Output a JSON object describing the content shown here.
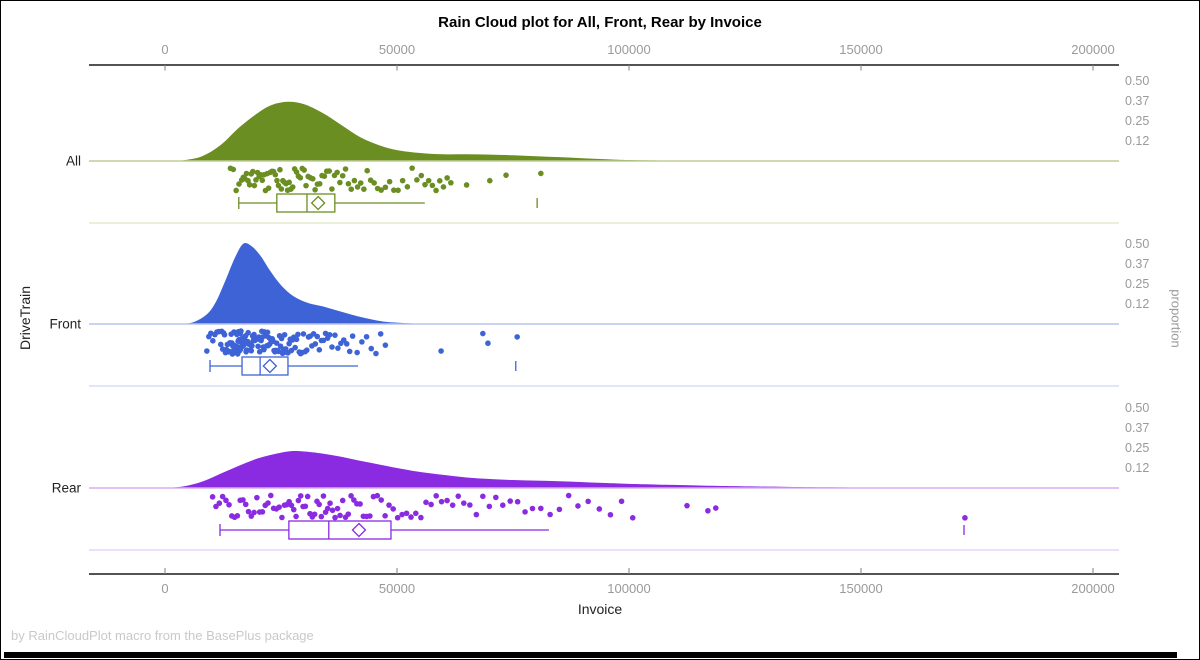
{
  "title": "Rain Cloud plot for All, Front, Rear by Invoice",
  "footer": "by RainCloudPlot macro from the BasePlus package",
  "x_axis": {
    "label": "Invoice",
    "tick_values": [
      0,
      50000,
      100000,
      150000,
      200000
    ],
    "tick_labels": [
      "0",
      "50000",
      "100000",
      "150000",
      "200000"
    ]
  },
  "y_axis": {
    "label": "DriveTrain",
    "categories": [
      "All",
      "Front",
      "Rear"
    ]
  },
  "right_axis": {
    "label": "proportion",
    "tick_labels": [
      "0.50",
      "0.37",
      "0.25",
      "0.12"
    ],
    "tick_values": [
      0.5,
      0.375,
      0.25,
      0.125
    ]
  },
  "chart_data": {
    "type": "raincloud",
    "xlabel": "Invoice",
    "ylabel": "DriveTrain",
    "x_range": [
      0,
      200000
    ],
    "proportion_ticks": [
      0.5,
      0.375,
      0.25,
      0.125
    ],
    "groups": [
      {
        "name": "All",
        "color": "#6B8E23",
        "baseline_color": "#BFCE96",
        "separator_color": "#DDE5C4",
        "density": [
          [
            1000,
            0
          ],
          [
            4000,
            0.005
          ],
          [
            8000,
            0.03
          ],
          [
            12000,
            0.1
          ],
          [
            16000,
            0.21
          ],
          [
            20000,
            0.3
          ],
          [
            23000,
            0.35
          ],
          [
            26500,
            0.37
          ],
          [
            30000,
            0.355
          ],
          [
            34000,
            0.3
          ],
          [
            38000,
            0.225
          ],
          [
            42000,
            0.15
          ],
          [
            46000,
            0.1
          ],
          [
            50000,
            0.068
          ],
          [
            55000,
            0.05
          ],
          [
            60000,
            0.042
          ],
          [
            65000,
            0.042
          ],
          [
            70000,
            0.04
          ],
          [
            75000,
            0.036
          ],
          [
            80000,
            0.03
          ],
          [
            85000,
            0.024
          ],
          [
            90000,
            0.017
          ],
          [
            95000,
            0.011
          ],
          [
            100000,
            0.006
          ],
          [
            110000,
            0.002
          ],
          [
            120000,
            0
          ]
        ],
        "box": {
          "whisker_low": 15900,
          "q1": 24100,
          "median": 30600,
          "mean": 33000,
          "q3": 36600,
          "whisker_high": 56000,
          "far_outlier": 80200
        },
        "rain": {
          "count": 88,
          "quantiles": [
            13800,
            16500,
            18000,
            19500,
            21000,
            22500,
            24100,
            25500,
            27000,
            28800,
            30600,
            32800,
            35000,
            37500,
            40200,
            43200,
            46500,
            50500,
            55000,
            58500,
            62000
          ],
          "extras": [
            65000,
            70000,
            73500,
            81000
          ]
        }
      },
      {
        "name": "Front",
        "color": "#3E63D6",
        "baseline_color": "#B7C4EC",
        "separator_color": "#CCD7F1",
        "density": [
          [
            3000,
            0
          ],
          [
            6000,
            0.01
          ],
          [
            9000,
            0.06
          ],
          [
            11000,
            0.14
          ],
          [
            13000,
            0.27
          ],
          [
            15000,
            0.41
          ],
          [
            16800,
            0.5
          ],
          [
            18500,
            0.49
          ],
          [
            20500,
            0.43
          ],
          [
            22500,
            0.34
          ],
          [
            24500,
            0.26
          ],
          [
            26500,
            0.2
          ],
          [
            28500,
            0.16
          ],
          [
            31000,
            0.13
          ],
          [
            34000,
            0.11
          ],
          [
            37000,
            0.085
          ],
          [
            40000,
            0.06
          ],
          [
            43000,
            0.038
          ],
          [
            46000,
            0.02
          ],
          [
            49000,
            0.01
          ],
          [
            53000,
            0.004
          ],
          [
            58000,
            0.001
          ],
          [
            65000,
            0
          ]
        ],
        "box": {
          "whisker_low": 9700,
          "q1": 16600,
          "median": 20500,
          "mean": 22600,
          "q3": 26500,
          "whisker_high": 41600,
          "far_outlier": 75600
        },
        "rain": {
          "count": 148,
          "quantiles": [
            8800,
            12000,
            13500,
            14500,
            15300,
            16000,
            16600,
            17300,
            18100,
            19200,
            20500,
            21600,
            22800,
            24200,
            25800,
            27600,
            29800,
            32500,
            35800,
            40500,
            48000
          ],
          "extras": [
            59500,
            68500,
            69600,
            75900
          ]
        }
      },
      {
        "name": "Rear",
        "color": "#8A2BE2",
        "baseline_color": "#D6AEF0",
        "separator_color": "#E4C9F5",
        "density": [
          [
            0,
            0
          ],
          [
            4000,
            0.01
          ],
          [
            8000,
            0.04
          ],
          [
            12000,
            0.09
          ],
          [
            16000,
            0.14
          ],
          [
            20000,
            0.185
          ],
          [
            24000,
            0.215
          ],
          [
            27000,
            0.23
          ],
          [
            30000,
            0.228
          ],
          [
            34000,
            0.215
          ],
          [
            38000,
            0.195
          ],
          [
            42000,
            0.17
          ],
          [
            46000,
            0.148
          ],
          [
            50000,
            0.125
          ],
          [
            55000,
            0.1
          ],
          [
            60000,
            0.082
          ],
          [
            65000,
            0.066
          ],
          [
            70000,
            0.056
          ],
          [
            75000,
            0.05
          ],
          [
            80000,
            0.046
          ],
          [
            85000,
            0.042
          ],
          [
            90000,
            0.037
          ],
          [
            95000,
            0.031
          ],
          [
            100000,
            0.026
          ],
          [
            108000,
            0.02
          ],
          [
            116000,
            0.015
          ],
          [
            124000,
            0.011
          ],
          [
            134000,
            0.007
          ],
          [
            145000,
            0.004
          ],
          [
            158000,
            0.002
          ],
          [
            172000,
            0.001
          ],
          [
            190000,
            0
          ]
        ],
        "box": {
          "whisker_low": 11850,
          "q1": 26700,
          "median": 35300,
          "mean": 41800,
          "q3": 48700,
          "whisker_high": 82750,
          "far_outlier": 172200
        },
        "rain": {
          "count": 100,
          "quantiles": [
            9900,
            13500,
            16500,
            19500,
            22500,
            25500,
            28000,
            30500,
            33000,
            35300,
            38000,
            41000,
            44500,
            48700,
            53500,
            59000,
            65000,
            72000,
            80000,
            90000,
            102000
          ],
          "extras": [
            112500,
            117000,
            118700,
            172400
          ]
        }
      }
    ]
  }
}
